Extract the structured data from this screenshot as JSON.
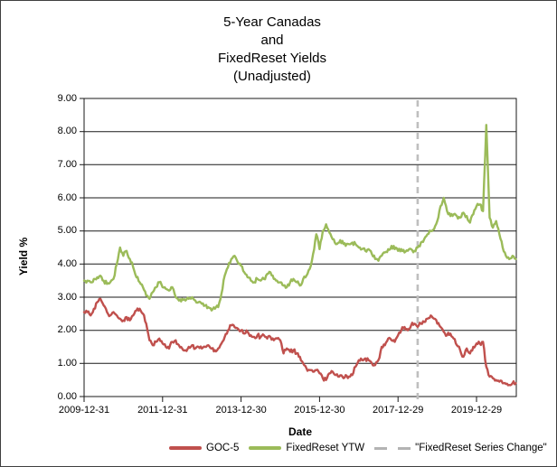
{
  "title": {
    "lines": [
      "5-Year Canadas",
      "and",
      "FixedReset Yields",
      "(Unadjusted)"
    ]
  },
  "axes": {
    "y_label": "Yield %",
    "x_label": "Date",
    "y_ticks": [
      "9.00",
      "8.00",
      "7.00",
      "6.00",
      "5.00",
      "4.00",
      "3.00",
      "2.00",
      "1.00",
      "0.00"
    ],
    "x_ticks": [
      "2009-12-31",
      "2011-12-31",
      "2013-12-30",
      "2015-12-30",
      "2017-12-29",
      "2019-12-29"
    ]
  },
  "legend": [
    {
      "label": "GOC-5",
      "color": "#C0504D",
      "style": "solid"
    },
    {
      "label": "FixedReset YTW",
      "color": "#9BBB59",
      "style": "solid"
    },
    {
      "label": "\"FixedReset Series Change\"",
      "color": "#B3B3B3",
      "style": "dashed"
    }
  ],
  "chart_data": {
    "type": "line",
    "title": "5-Year Canadas and FixedReset Yields (Unadjusted)",
    "xlabel": "Date",
    "ylabel": "Yield %",
    "ylim": [
      0,
      9
    ],
    "grid": "horizontal",
    "legend_position": "bottom",
    "x_start": "2010-01",
    "x_end": "2020-12",
    "x_step_months": 1,
    "x_axis_tick_labels": [
      "2009-12-31",
      "2011-12-31",
      "2013-12-30",
      "2015-12-30",
      "2017-12-29",
      "2019-12-29"
    ],
    "vline": {
      "label": "\"FixedReset Series Change\"",
      "x": "2018-07",
      "color": "#BFBFBF",
      "dashed": true
    },
    "series": [
      {
        "name": "GOC-5",
        "color": "#C0504D",
        "values": [
          2.55,
          2.45,
          2.65,
          2.85,
          2.95,
          2.75,
          2.55,
          2.45,
          2.55,
          2.45,
          2.35,
          2.3,
          2.4,
          2.3,
          2.45,
          2.6,
          2.65,
          2.5,
          2.2,
          1.7,
          1.55,
          1.65,
          1.75,
          1.6,
          1.5,
          1.45,
          1.65,
          1.7,
          1.55,
          1.45,
          1.4,
          1.5,
          1.55,
          1.45,
          1.5,
          1.45,
          1.5,
          1.55,
          1.45,
          1.4,
          1.45,
          1.6,
          1.8,
          2.0,
          2.15,
          2.1,
          2.05,
          2.0,
          1.9,
          1.95,
          1.85,
          1.8,
          1.85,
          1.8,
          1.85,
          1.75,
          1.8,
          1.7,
          1.75,
          1.7,
          1.3,
          1.45,
          1.35,
          1.4,
          1.3,
          1.2,
          1.0,
          0.85,
          0.8,
          0.75,
          0.8,
          0.7,
          0.55,
          0.5,
          0.7,
          0.75,
          0.65,
          0.6,
          0.6,
          0.65,
          0.6,
          0.65,
          0.9,
          1.1,
          1.1,
          1.15,
          1.1,
          1.0,
          0.95,
          1.1,
          1.5,
          1.55,
          1.75,
          1.7,
          1.65,
          1.85,
          2.0,
          2.1,
          2.0,
          2.15,
          2.2,
          2.1,
          2.2,
          2.25,
          2.35,
          2.45,
          2.35,
          2.2,
          2.1,
          1.95,
          1.85,
          1.9,
          1.75,
          1.55,
          1.4,
          1.2,
          1.45,
          1.3,
          1.5,
          1.6,
          1.6,
          1.65,
          0.9,
          0.6,
          0.55,
          0.5,
          0.45,
          0.4,
          0.38,
          0.35,
          0.4,
          0.4
        ]
      },
      {
        "name": "FixedReset YTW",
        "color": "#9BBB59",
        "values": [
          3.5,
          3.45,
          3.55,
          3.6,
          3.65,
          3.5,
          3.4,
          3.45,
          3.55,
          4.0,
          4.5,
          4.25,
          4.4,
          4.15,
          3.9,
          3.6,
          3.45,
          3.3,
          3.05,
          2.95,
          3.15,
          3.3,
          3.45,
          3.3,
          3.25,
          3.2,
          3.3,
          3.0,
          2.9,
          2.95,
          2.9,
          2.95,
          3.0,
          2.9,
          2.85,
          2.8,
          2.75,
          2.7,
          2.6,
          2.65,
          2.7,
          3.1,
          3.65,
          3.9,
          4.15,
          4.25,
          4.05,
          3.95,
          3.75,
          3.6,
          3.5,
          3.45,
          3.55,
          3.5,
          3.55,
          3.7,
          3.75,
          3.55,
          3.5,
          3.45,
          3.35,
          3.3,
          3.45,
          3.55,
          3.45,
          3.35,
          3.55,
          3.65,
          3.85,
          4.3,
          4.9,
          4.45,
          5.0,
          5.2,
          4.95,
          4.75,
          4.6,
          4.65,
          4.7,
          4.55,
          4.6,
          4.65,
          4.6,
          4.5,
          4.45,
          4.4,
          4.45,
          4.3,
          4.15,
          4.1,
          4.25,
          4.35,
          4.45,
          4.55,
          4.45,
          4.4,
          4.45,
          4.35,
          4.4,
          4.45,
          4.4,
          4.5,
          4.65,
          4.75,
          4.9,
          5.0,
          5.05,
          5.3,
          5.75,
          6.0,
          5.6,
          5.45,
          5.5,
          5.45,
          5.4,
          5.55,
          5.45,
          5.25,
          5.5,
          5.75,
          5.8,
          5.6,
          8.2,
          5.4,
          5.1,
          5.3,
          4.9,
          4.5,
          4.25,
          4.15,
          4.25,
          4.15
        ]
      }
    ]
  }
}
